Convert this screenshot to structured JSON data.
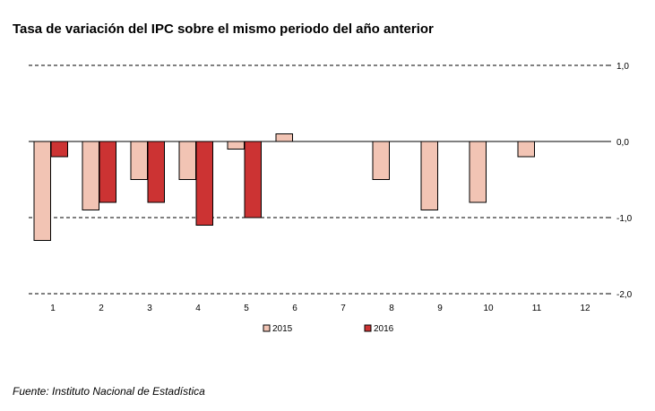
{
  "source": "Fuente: Instituto Nacional de Estadística",
  "chart_data": {
    "type": "bar",
    "title": "Tasa de variación del IPC sobre el mismo periodo del año anterior",
    "xlabel": "",
    "ylabel": "",
    "categories": [
      "1",
      "2",
      "3",
      "4",
      "5",
      "6",
      "7",
      "8",
      "9",
      "10",
      "11",
      "12"
    ],
    "series": [
      {
        "name": "2015",
        "color": "#f2c4b4",
        "values": [
          -1.3,
          -0.9,
          -0.5,
          -0.5,
          -0.1,
          0.1,
          null,
          -0.5,
          -0.9,
          -0.8,
          -0.2,
          null
        ]
      },
      {
        "name": "2016",
        "color": "#cc3333",
        "values": [
          -0.2,
          -0.8,
          -0.8,
          -1.1,
          -1.0,
          null,
          null,
          null,
          null,
          null,
          null,
          null
        ]
      }
    ],
    "ylim": [
      -2.0,
      1.0
    ],
    "yticks": [
      "1,0",
      "0,0",
      "-1,0",
      "-2,0"
    ],
    "ytick_values": [
      1.0,
      0.0,
      -1.0,
      -2.0
    ],
    "y_axis_side": "right",
    "grid": "dashed",
    "legend_position": "bottom"
  }
}
